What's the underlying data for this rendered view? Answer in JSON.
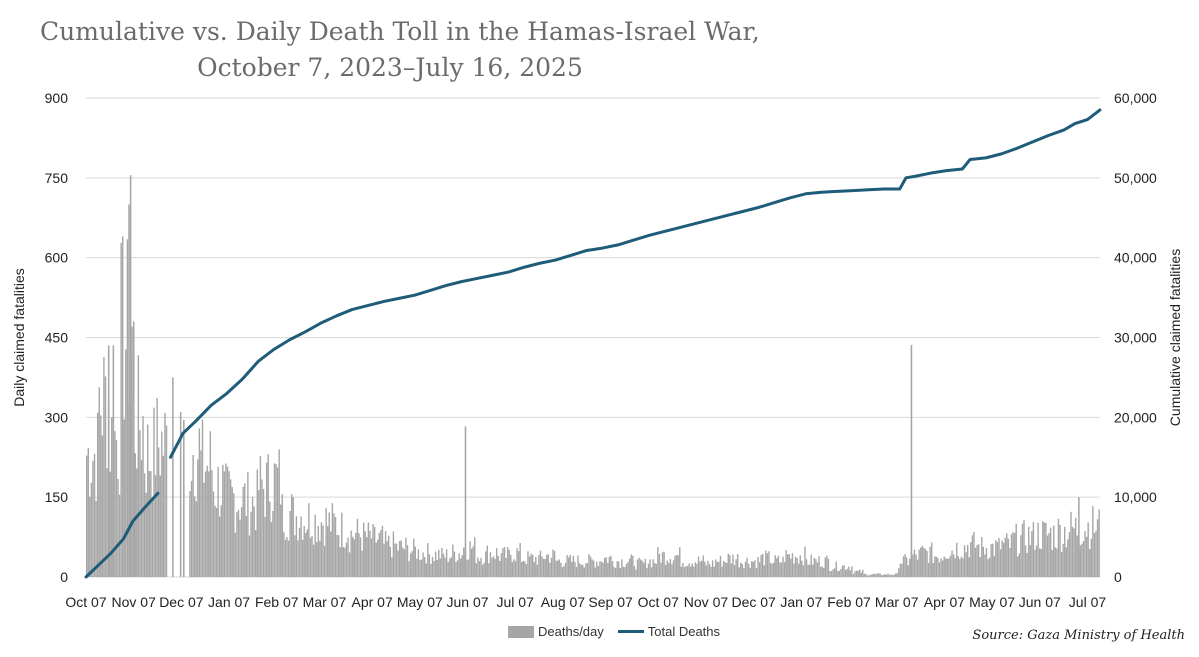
{
  "title": {
    "line1": "Cumulative vs. Daily Death Toll in the Hamas-Israel War,",
    "line2": "October 7, 2023–July 16, 2025"
  },
  "source": "Source: Gaza Ministry of Health",
  "legend": {
    "bars_label": "Deaths/day",
    "line_label": "Total Deaths"
  },
  "colors": {
    "bars": "#a6a6a6",
    "line": "#1f5c7a",
    "grid": "#d9d9d9"
  },
  "chart_data": {
    "type": "bar+line",
    "ylabel_left": "Daily claimed fatalities",
    "ylabel_right": "Cumulative claimed fatalities",
    "y_left_ticks": [
      "0",
      "150",
      "300",
      "450",
      "600",
      "750",
      "900"
    ],
    "y_right_ticks": [
      "0",
      "10,000",
      "20,000",
      "30,000",
      "40,000",
      "50,000",
      "60,000"
    ],
    "ylim_left": [
      0,
      900
    ],
    "ylim_right": [
      0,
      60000
    ],
    "x_ticks": [
      "Oct 07",
      "Nov 07",
      "Dec 07",
      "Jan 07",
      "Feb 07",
      "Mar 07",
      "Apr 07",
      "May 07",
      "Jun 07",
      "Jul 07",
      "Aug 07",
      "Sep 07",
      "Oct 07",
      "Nov 07",
      "Dec 07",
      "Jan 07",
      "Feb 07",
      "Mar 07",
      "Apr 07",
      "May 07",
      "Jun 07",
      "Jul 07"
    ],
    "x_range_days": [
      0,
      648
    ],
    "grid": "horizontal",
    "legend_position": "bottom",
    "series": [
      {
        "name": "Deaths/day",
        "type": "bar",
        "values_weekly_avg": [
          230,
          330,
          260,
          450,
          290,
          230,
          250,
          0,
          0,
          240,
          210,
          170,
          150,
          145,
          140,
          170,
          180,
          120,
          115,
          110,
          105,
          100,
          90,
          80,
          75,
          70,
          60,
          55,
          50,
          45,
          42,
          40,
          45,
          55,
          40,
          45,
          40,
          45,
          35,
          35,
          40,
          30,
          30,
          30,
          30,
          35,
          30,
          30,
          25,
          30,
          40,
          40,
          30,
          30,
          25,
          30,
          35,
          30,
          30,
          35,
          30,
          40,
          40,
          30,
          30,
          20,
          20,
          10,
          5,
          5,
          5,
          30,
          40,
          45,
          40,
          50,
          55,
          60,
          55,
          55,
          60,
          70,
          75,
          80,
          80,
          85,
          90,
          95,
          95
        ],
        "spikes": [
          {
            "day": 14,
            "value": 435
          },
          {
            "day": 17,
            "value": 435
          },
          {
            "day": 27,
            "value": 700
          },
          {
            "day": 28,
            "value": 755
          },
          {
            "day": 30,
            "value": 480
          },
          {
            "day": 55,
            "value": 375
          },
          {
            "day": 60,
            "value": 310
          },
          {
            "day": 62,
            "value": 295
          },
          {
            "day": 242,
            "value": 283
          },
          {
            "day": 527,
            "value": 436
          },
          {
            "day": 634,
            "value": 150
          }
        ]
      },
      {
        "name": "Total Deaths",
        "type": "line",
        "points": [
          [
            0,
            0
          ],
          [
            8,
            1500
          ],
          [
            16,
            3000
          ],
          [
            24,
            4800
          ],
          [
            30,
            7000
          ],
          [
            38,
            8800
          ],
          [
            46,
            10500
          ],
          [
            54,
            15000
          ],
          [
            58,
            16500
          ],
          [
            62,
            18000
          ],
          [
            70,
            19500
          ],
          [
            80,
            21500
          ],
          [
            90,
            23000
          ],
          [
            100,
            24800
          ],
          [
            110,
            27000
          ],
          [
            120,
            28500
          ],
          [
            130,
            29700
          ],
          [
            140,
            30700
          ],
          [
            150,
            31800
          ],
          [
            160,
            32700
          ],
          [
            170,
            33500
          ],
          [
            180,
            34000
          ],
          [
            190,
            34500
          ],
          [
            200,
            34900
          ],
          [
            210,
            35300
          ],
          [
            220,
            35900
          ],
          [
            230,
            36500
          ],
          [
            240,
            37000
          ],
          [
            250,
            37400
          ],
          [
            260,
            37800
          ],
          [
            270,
            38200
          ],
          [
            280,
            38800
          ],
          [
            290,
            39300
          ],
          [
            300,
            39700
          ],
          [
            310,
            40300
          ],
          [
            320,
            40900
          ],
          [
            330,
            41200
          ],
          [
            340,
            41600
          ],
          [
            350,
            42200
          ],
          [
            360,
            42800
          ],
          [
            370,
            43300
          ],
          [
            380,
            43800
          ],
          [
            390,
            44300
          ],
          [
            400,
            44800
          ],
          [
            410,
            45300
          ],
          [
            420,
            45800
          ],
          [
            430,
            46300
          ],
          [
            440,
            46900
          ],
          [
            450,
            47500
          ],
          [
            460,
            48000
          ],
          [
            470,
            48200
          ],
          [
            480,
            48300
          ],
          [
            490,
            48400
          ],
          [
            500,
            48500
          ],
          [
            510,
            48600
          ],
          [
            520,
            48600
          ],
          [
            524,
            50000
          ],
          [
            530,
            50200
          ],
          [
            540,
            50600
          ],
          [
            550,
            50900
          ],
          [
            560,
            51100
          ],
          [
            565,
            52300
          ],
          [
            575,
            52500
          ],
          [
            585,
            53000
          ],
          [
            595,
            53700
          ],
          [
            605,
            54500
          ],
          [
            615,
            55300
          ],
          [
            625,
            56000
          ],
          [
            632,
            56800
          ],
          [
            640,
            57300
          ],
          [
            648,
            58500
          ]
        ]
      }
    ]
  }
}
